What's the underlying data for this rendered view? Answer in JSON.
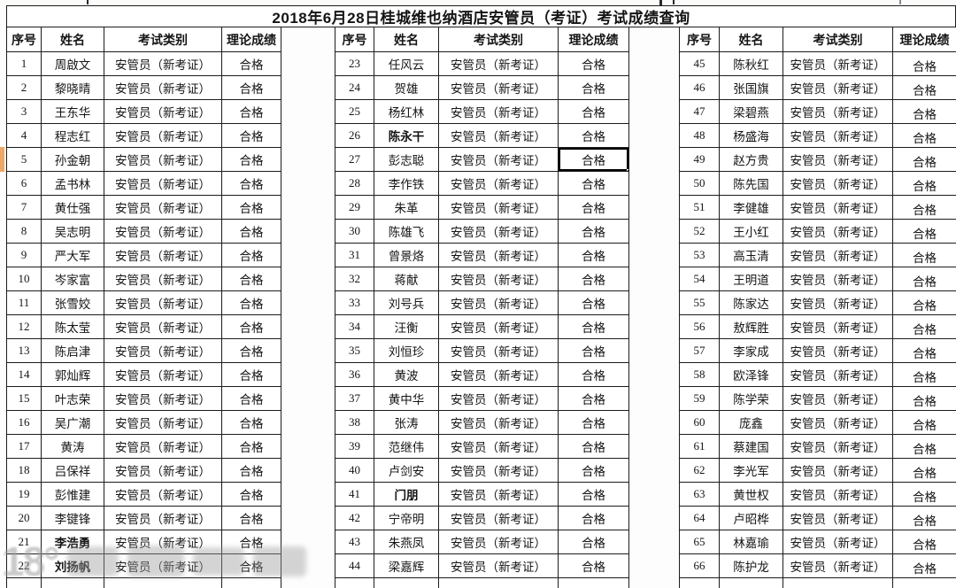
{
  "title": "2018年6月28日桂城维也纳酒店安管员（考证）考试成绩查询",
  "columns": [
    "序号",
    "姓名",
    "考试类别",
    "理论成绩"
  ],
  "exam_type": "安管员（新考证）",
  "result": "合格",
  "watermark": "18°",
  "accent_colors": {
    "grid": "#1c1c1c",
    "edge_marker": "#eca869",
    "watermark_gray": "#9f9f9f"
  },
  "selection": {
    "row_no": 27,
    "column": "理论成绩"
  },
  "tables": [
    {
      "rows": [
        {
          "no": 1,
          "name": "周啟文"
        },
        {
          "no": 2,
          "name": "黎晓晴"
        },
        {
          "no": 3,
          "name": "王东华"
        },
        {
          "no": 4,
          "name": "程志红"
        },
        {
          "no": 5,
          "name": "孙金朝"
        },
        {
          "no": 6,
          "name": "孟书林"
        },
        {
          "no": 7,
          "name": "黄仕强"
        },
        {
          "no": 8,
          "name": "吴志明"
        },
        {
          "no": 9,
          "name": "严大军"
        },
        {
          "no": 10,
          "name": "岑家富"
        },
        {
          "no": 11,
          "name": "张雪姣"
        },
        {
          "no": 12,
          "name": "陈太莹"
        },
        {
          "no": 13,
          "name": "陈启津"
        },
        {
          "no": 14,
          "name": "郭灿辉"
        },
        {
          "no": 15,
          "name": "叶志荣"
        },
        {
          "no": 16,
          "name": "吴广潮"
        },
        {
          "no": 17,
          "name": "黄涛"
        },
        {
          "no": 18,
          "name": "吕保祥"
        },
        {
          "no": 19,
          "name": "彭惟建"
        },
        {
          "no": 20,
          "name": "李键锋"
        },
        {
          "no": 21,
          "name": "李浩勇",
          "bold": true
        },
        {
          "no": 22,
          "name": "刘扬帆",
          "bold": true
        }
      ]
    },
    {
      "rows": [
        {
          "no": 23,
          "name": "任风云"
        },
        {
          "no": 24,
          "name": "贺雄"
        },
        {
          "no": 25,
          "name": "杨红林"
        },
        {
          "no": 26,
          "name": "陈永干",
          "bold": true
        },
        {
          "no": 27,
          "name": "彭志聪",
          "selected": true
        },
        {
          "no": 28,
          "name": "李作铁"
        },
        {
          "no": 29,
          "name": "朱革"
        },
        {
          "no": 30,
          "name": "陈雄飞"
        },
        {
          "no": 31,
          "name": "曾景烙"
        },
        {
          "no": 32,
          "name": "蒋献"
        },
        {
          "no": 33,
          "name": "刘号兵"
        },
        {
          "no": 34,
          "name": "汪衡"
        },
        {
          "no": 35,
          "name": "刘恒珍"
        },
        {
          "no": 36,
          "name": "黄波"
        },
        {
          "no": 37,
          "name": "黄中华"
        },
        {
          "no": 38,
          "name": "张涛"
        },
        {
          "no": 39,
          "name": "范继伟"
        },
        {
          "no": 40,
          "name": "卢剑安"
        },
        {
          "no": 41,
          "name": "门朋",
          "bold": true
        },
        {
          "no": 42,
          "name": "宁帝明"
        },
        {
          "no": 43,
          "name": "朱燕凤"
        },
        {
          "no": 44,
          "name": "梁嘉辉"
        }
      ]
    },
    {
      "rows": [
        {
          "no": 45,
          "name": "陈秋红"
        },
        {
          "no": 46,
          "name": "张国旗"
        },
        {
          "no": 47,
          "name": "梁碧燕"
        },
        {
          "no": 48,
          "name": "杨盛海"
        },
        {
          "no": 49,
          "name": "赵方贵"
        },
        {
          "no": 50,
          "name": "陈先国"
        },
        {
          "no": 51,
          "name": "李健雄"
        },
        {
          "no": 52,
          "name": "王小红"
        },
        {
          "no": 53,
          "name": "高玉清"
        },
        {
          "no": 54,
          "name": "王明道"
        },
        {
          "no": 55,
          "name": "陈家达"
        },
        {
          "no": 56,
          "name": "敖辉胜"
        },
        {
          "no": 57,
          "name": "李家成"
        },
        {
          "no": 58,
          "name": "欧泽锋"
        },
        {
          "no": 59,
          "name": "陈学荣"
        },
        {
          "no": 60,
          "name": "庞鑫"
        },
        {
          "no": 61,
          "name": "蔡建国"
        },
        {
          "no": 62,
          "name": "李光军"
        },
        {
          "no": 63,
          "name": "黄世权"
        },
        {
          "no": 64,
          "name": "卢昭桦"
        },
        {
          "no": 65,
          "name": "林嘉瑜"
        },
        {
          "no": 66,
          "name": "陈护龙"
        }
      ]
    }
  ]
}
